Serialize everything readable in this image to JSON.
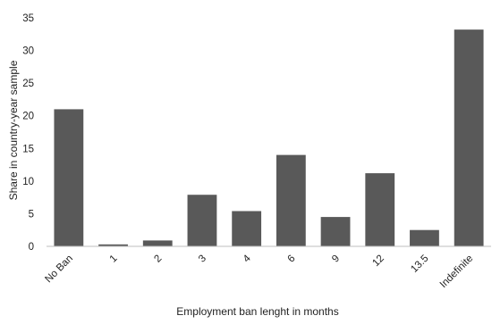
{
  "chart_data": {
    "type": "bar",
    "title": "",
    "xlabel": "Employment ban lenght in months",
    "ylabel": "Share in country-year sample",
    "categories": [
      "No Ban",
      "1",
      "2",
      "3",
      "4",
      "6",
      "9",
      "12",
      "13.5",
      "Indefinite"
    ],
    "values": [
      21.0,
      0.3,
      0.9,
      7.9,
      5.4,
      14.0,
      4.5,
      11.2,
      2.5,
      33.2
    ],
    "ylim": [
      0,
      35
    ],
    "yticks": [
      0,
      5,
      10,
      15,
      20,
      25,
      30,
      35
    ],
    "grid": false,
    "legend": "none",
    "bar_color": "#595959",
    "axis_color": "#bfbfbf"
  }
}
